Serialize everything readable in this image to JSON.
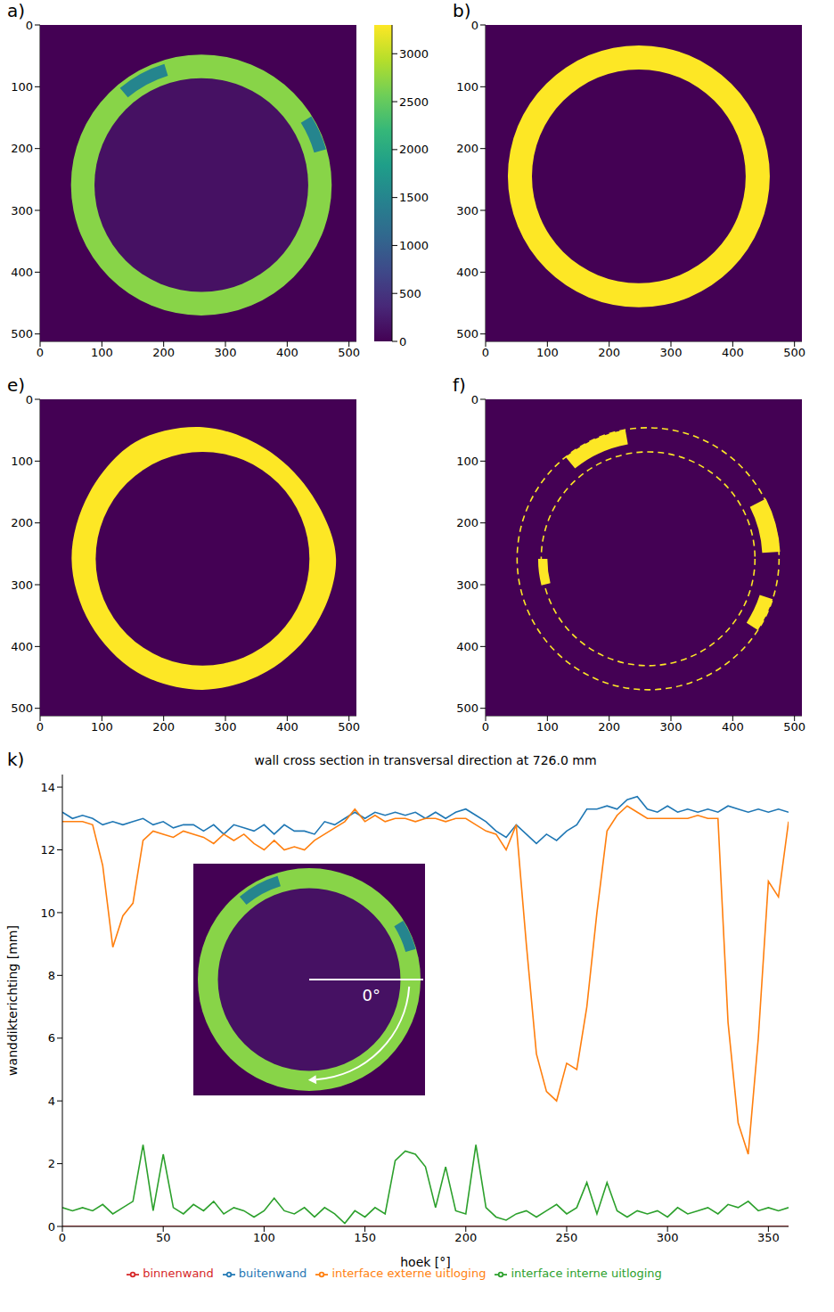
{
  "chart_data": [
    {
      "type": "image",
      "panel": "a)",
      "xlim": [
        0,
        512
      ],
      "ylim": [
        512,
        0
      ],
      "xticks": [
        0,
        100,
        200,
        300,
        400,
        500
      ],
      "yticks": [
        0,
        100,
        200,
        300,
        400,
        500
      ],
      "background": 0,
      "colorbar": {
        "range": [
          0,
          3300
        ],
        "ticks": [
          0,
          500,
          1000,
          1500,
          2000,
          2500,
          3000
        ]
      },
      "rings": [
        {
          "center": [
            261,
            259
          ],
          "outer_radius": 211,
          "inner_radius": 173,
          "value": 2700,
          "inside_value": 150
        }
      ],
      "segments": [
        {
          "center": [
            261,
            259
          ],
          "angles": [
            230,
            253
          ],
          "radii": [
            185,
            205
          ],
          "value": 1500
        },
        {
          "center": [
            261,
            259
          ],
          "angles": [
            328,
            344
          ],
          "radii": [
            190,
            210
          ],
          "value": 1500
        }
      ]
    },
    {
      "type": "image",
      "panel": "b)",
      "xlim": [
        0,
        512
      ],
      "ylim": [
        512,
        0
      ],
      "xticks": [
        0,
        100,
        200,
        300,
        400,
        500
      ],
      "yticks": [
        0,
        100,
        200,
        300,
        400,
        500
      ],
      "background": 0,
      "value_range": [
        0,
        1
      ],
      "rings": [
        {
          "center": [
            248,
            245
          ],
          "outer_radius": 212,
          "inner_radius": 173,
          "value": 1,
          "inside_value": 0
        }
      ]
    },
    {
      "type": "image",
      "panel": "e)",
      "xlim": [
        0,
        512
      ],
      "ylim": [
        512,
        0
      ],
      "xticks": [
        0,
        100,
        200,
        300,
        400,
        500
      ],
      "yticks": [
        0,
        100,
        200,
        300,
        400,
        500
      ],
      "background": 0,
      "value_range": [
        0,
        1
      ],
      "rings": [
        {
          "center": [
            263,
            258
          ],
          "angles": [
            0,
            30,
            60,
            90,
            120,
            150,
            180,
            210,
            240,
            270,
            300,
            330
          ],
          "outer_radius": [
            216,
            212,
            210,
            212,
            212,
            210,
            212,
            212,
            218,
            213,
            205,
            205
          ],
          "inner_radius": 173,
          "value": 1,
          "inside_value": 0
        }
      ]
    },
    {
      "type": "image",
      "panel": "f)",
      "xlim": [
        0,
        512
      ],
      "ylim": [
        512,
        0
      ],
      "xticks": [
        0,
        100,
        200,
        300,
        400,
        500
      ],
      "yticks": [
        0,
        100,
        200,
        300,
        400,
        500
      ],
      "background": 0,
      "value_range": [
        0,
        1
      ],
      "circles": [
        {
          "center": [
            263,
            258
          ],
          "radius": 212,
          "value": 1,
          "line_style": "dashed"
        },
        {
          "center": [
            263,
            258
          ],
          "radius": 173,
          "value": 1,
          "line_style": "dashed"
        }
      ],
      "segments": [
        {
          "center": [
            263,
            258
          ],
          "angles": [
            231,
            260
          ],
          "radii": [
            188,
            212
          ],
          "value": 1
        },
        {
          "center": [
            263,
            258
          ],
          "angles": [
            333,
            357
          ],
          "radii": [
            185,
            214
          ],
          "value": 1
        },
        {
          "center": [
            263,
            258
          ],
          "angles": [
            18,
            33
          ],
          "radii": [
            190,
            212
          ],
          "value": 1
        },
        {
          "center": [
            263,
            258
          ],
          "angles": [
            166,
            180
          ],
          "radii": [
            163,
            178
          ],
          "value": 1
        }
      ]
    },
    {
      "type": "line",
      "panel": "k)",
      "title": "wall cross section in transversal direction at 726.0 mm",
      "x_label": "hoek [°]",
      "y_label": "wanddikterichting [mm]",
      "xlim": [
        0,
        360
      ],
      "xticks": [
        0,
        50,
        100,
        150,
        200,
        250,
        300,
        350
      ],
      "ylim": [
        0,
        14.4
      ],
      "yticks": [
        0,
        2,
        4,
        6,
        8,
        10,
        12,
        14
      ],
      "legend": "bottom",
      "inset": {
        "annotation": "0°"
      },
      "x": [
        0,
        5,
        10,
        15,
        20,
        25,
        30,
        35,
        40,
        45,
        50,
        55,
        60,
        65,
        70,
        75,
        80,
        85,
        90,
        95,
        100,
        105,
        110,
        115,
        120,
        125,
        130,
        135,
        140,
        145,
        150,
        155,
        160,
        165,
        170,
        175,
        180,
        185,
        190,
        195,
        200,
        205,
        210,
        215,
        220,
        225,
        230,
        235,
        240,
        245,
        250,
        255,
        260,
        265,
        270,
        275,
        280,
        285,
        290,
        295,
        300,
        305,
        310,
        315,
        320,
        325,
        330,
        335,
        340,
        345,
        350,
        355,
        360
      ],
      "series": [
        {
          "name": "binnenwand",
          "color": "#d62728",
          "values": [
            0,
            0,
            0,
            0,
            0,
            0,
            0,
            0,
            0,
            0,
            0,
            0,
            0,
            0,
            0,
            0,
            0,
            0,
            0,
            0,
            0,
            0,
            0,
            0,
            0,
            0,
            0,
            0,
            0,
            0,
            0,
            0,
            0,
            0,
            0,
            0,
            0,
            0,
            0,
            0,
            0,
            0,
            0,
            0,
            0,
            0,
            0,
            0,
            0,
            0,
            0,
            0,
            0,
            0,
            0,
            0,
            0,
            0,
            0,
            0,
            0,
            0,
            0,
            0,
            0,
            0,
            0,
            0,
            0,
            0,
            0,
            0,
            0
          ]
        },
        {
          "name": "buitenwand",
          "color": "#1f77b4",
          "values": [
            13.2,
            13.0,
            13.1,
            13.0,
            12.8,
            12.9,
            12.8,
            12.9,
            13.0,
            12.8,
            12.9,
            12.7,
            12.8,
            12.8,
            12.6,
            12.8,
            12.5,
            12.8,
            12.7,
            12.6,
            12.8,
            12.5,
            12.8,
            12.6,
            12.6,
            12.5,
            12.9,
            12.8,
            13.0,
            13.2,
            13.0,
            13.2,
            13.1,
            13.2,
            13.1,
            13.2,
            13.0,
            13.2,
            13.0,
            13.2,
            13.3,
            13.1,
            12.9,
            12.6,
            12.4,
            12.8,
            12.5,
            12.2,
            12.5,
            12.3,
            12.6,
            12.8,
            13.3,
            13.3,
            13.4,
            13.3,
            13.6,
            13.7,
            13.3,
            13.2,
            13.4,
            13.2,
            13.3,
            13.2,
            13.3,
            13.2,
            13.4,
            13.3,
            13.2,
            13.3,
            13.2,
            13.3,
            13.2
          ]
        },
        {
          "name": "interface externe uitloging",
          "color": "#ff7f0e",
          "values": [
            12.9,
            12.9,
            12.9,
            12.8,
            11.5,
            8.9,
            9.9,
            10.3,
            12.3,
            12.6,
            12.5,
            12.4,
            12.6,
            12.5,
            12.4,
            12.2,
            12.5,
            12.3,
            12.5,
            12.2,
            12.0,
            12.3,
            12.0,
            12.1,
            12.0,
            12.3,
            12.5,
            12.7,
            12.9,
            13.3,
            12.9,
            13.1,
            12.9,
            13.0,
            13.0,
            12.9,
            13.0,
            13.0,
            12.9,
            13.0,
            13.0,
            12.8,
            12.6,
            12.5,
            12.0,
            12.8,
            9.0,
            5.5,
            4.3,
            4.0,
            5.2,
            5.0,
            7.0,
            10.0,
            12.6,
            13.1,
            13.4,
            13.2,
            13.0,
            13.0,
            13.0,
            13.0,
            13.0,
            13.1,
            13.0,
            13.0,
            6.5,
            3.3,
            2.3,
            6.0,
            11.0,
            10.5,
            12.9
          ]
        },
        {
          "name": "interface interne uitloging",
          "color": "#2ca02c",
          "values": [
            0.6,
            0.5,
            0.6,
            0.5,
            0.7,
            0.4,
            0.6,
            0.8,
            2.6,
            0.5,
            2.3,
            0.6,
            0.4,
            0.7,
            0.5,
            0.8,
            0.4,
            0.6,
            0.5,
            0.3,
            0.5,
            0.9,
            0.5,
            0.4,
            0.6,
            0.3,
            0.6,
            0.4,
            0.1,
            0.5,
            0.3,
            0.6,
            0.4,
            2.1,
            2.4,
            2.3,
            1.9,
            0.6,
            1.9,
            0.5,
            0.4,
            2.6,
            0.6,
            0.3,
            0.2,
            0.4,
            0.5,
            0.3,
            0.5,
            0.7,
            0.4,
            0.6,
            1.4,
            0.4,
            1.4,
            0.5,
            0.3,
            0.5,
            0.4,
            0.5,
            0.3,
            0.6,
            0.4,
            0.5,
            0.6,
            0.4,
            0.7,
            0.6,
            0.8,
            0.5,
            0.6,
            0.5,
            0.6
          ]
        }
      ]
    }
  ]
}
